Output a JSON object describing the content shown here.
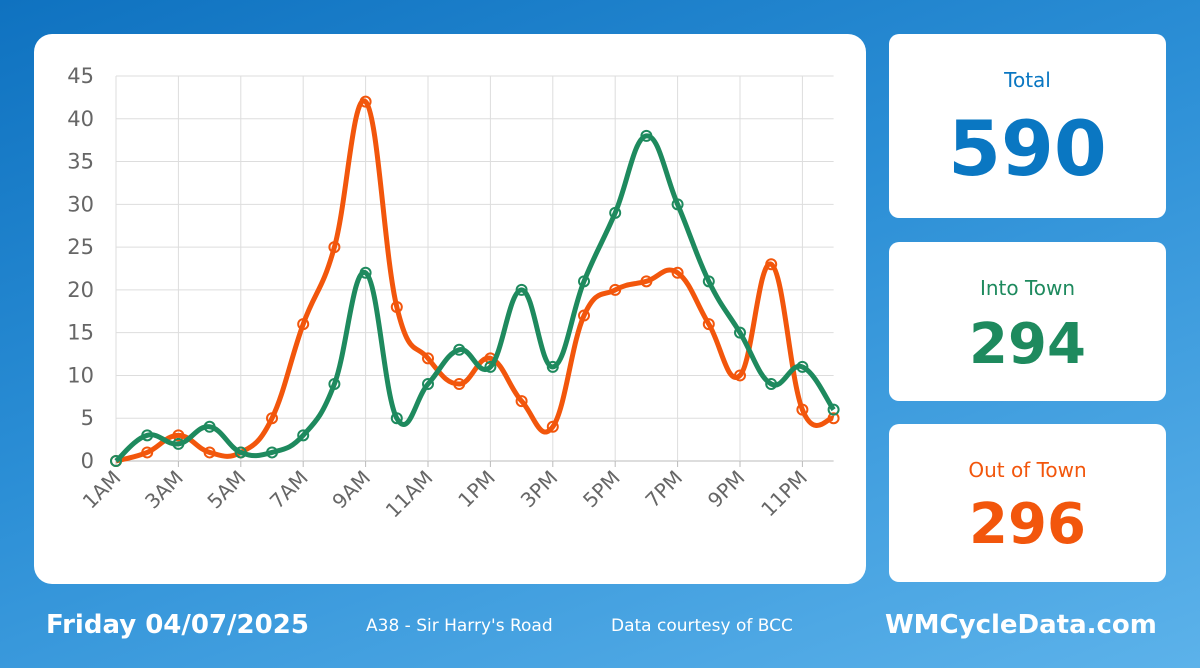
{
  "chart_data": {
    "type": "line",
    "categories": [
      "1AM",
      null,
      "3AM",
      null,
      "5AM",
      null,
      "7AM",
      null,
      "9AM",
      null,
      "11AM",
      null,
      "1PM",
      null,
      "3PM",
      null,
      "5PM",
      null,
      "7PM",
      null,
      "9PM",
      null,
      "11PM",
      null
    ],
    "series": [
      {
        "name": "Into Town",
        "color": "#1e8a5e",
        "values": [
          0,
          3,
          2,
          4,
          1,
          1,
          3,
          9,
          22,
          5,
          9,
          13,
          11,
          20,
          11,
          21,
          29,
          38,
          30,
          21,
          15,
          9,
          11,
          6
        ]
      },
      {
        "name": "Out of Town",
        "color": "#f2560c",
        "values": [
          0,
          1,
          3,
          1,
          1,
          5,
          16,
          25,
          42,
          18,
          12,
          9,
          12,
          7,
          4,
          17,
          20,
          21,
          22,
          16,
          10,
          23,
          6,
          5
        ]
      }
    ],
    "ylim": [
      0,
      45
    ],
    "yticks": [
      0,
      5,
      10,
      15,
      20,
      25,
      30,
      35,
      40,
      45
    ],
    "grid": true
  },
  "cards": {
    "total_label": "Total",
    "total": 590,
    "into_total": 294,
    "out_total": 296
  },
  "footer": {
    "date": "Friday 04/07/2025",
    "location": "A38 - Sir Harry's Road",
    "credit": "Data courtesy of BCC",
    "site": "WMCycleData.com"
  }
}
